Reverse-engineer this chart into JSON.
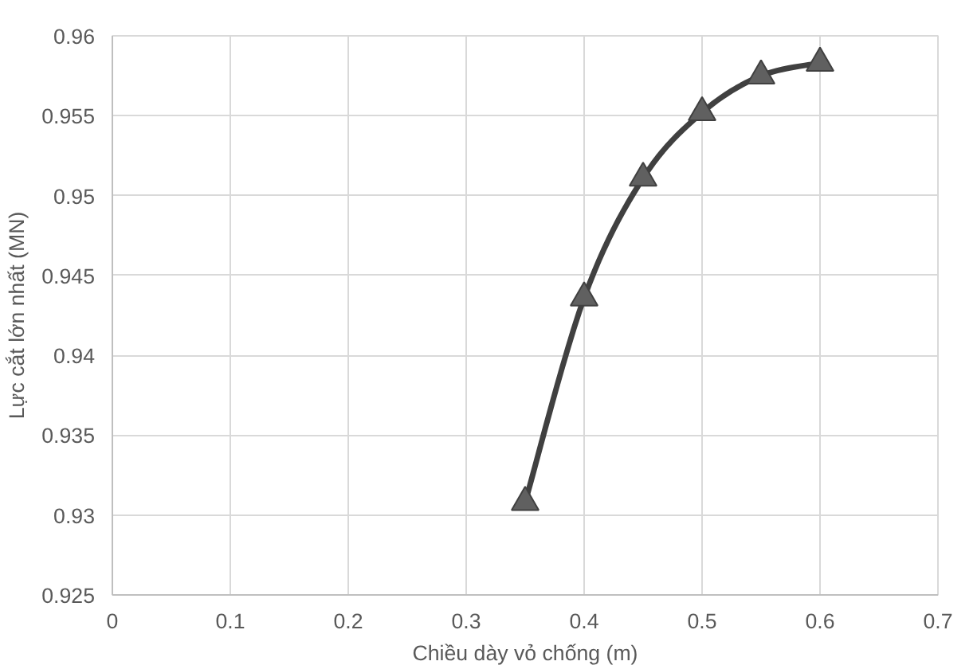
{
  "chart_data": {
    "type": "line",
    "xlabel": "Chiều dày vỏ chống (m)",
    "ylabel": "Lực cắt lớn nhất (MN)",
    "x": [
      0.35,
      0.4,
      0.45,
      0.5,
      0.55,
      0.6
    ],
    "series": [
      {
        "color": "#404040",
        "values": [
          0.9308,
          0.9436,
          0.9511,
          0.9552,
          0.9575,
          0.9583
        ]
      }
    ],
    "xlim": [
      0,
      0.7
    ],
    "xticks": [
      0,
      0.1,
      0.2,
      0.3,
      0.4,
      0.5,
      0.6,
      0.7
    ],
    "ylim": [
      0.925,
      0.96
    ],
    "yticks": [
      0.925,
      0.93,
      0.935,
      0.94,
      0.945,
      0.95,
      0.955,
      0.96
    ],
    "grid": true,
    "marker": "triangle",
    "line_style": "solid"
  }
}
